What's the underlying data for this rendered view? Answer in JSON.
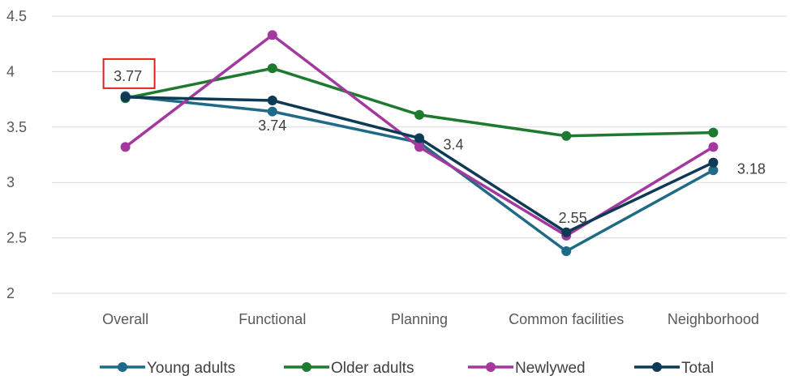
{
  "chart_data": {
    "type": "line",
    "categories": [
      "Overall",
      "Functional",
      "Planning",
      "Common facilities",
      "Neighborhood"
    ],
    "ylim": [
      2,
      4.5
    ],
    "yticks": [
      "2",
      "2.5",
      "3",
      "3.5",
      "4",
      "4.5"
    ],
    "grid": true,
    "legend_position": "bottom",
    "series": [
      {
        "name": "Young adults",
        "color": "#1f6a87",
        "values": [
          3.78,
          3.64,
          3.36,
          2.38,
          3.11
        ]
      },
      {
        "name": "Older adults",
        "color": "#1e7a2e",
        "values": [
          3.76,
          4.03,
          3.61,
          3.42,
          3.45
        ]
      },
      {
        "name": "Newlywed",
        "color": "#a3399e",
        "values": [
          3.32,
          4.33,
          3.32,
          2.52,
          3.32
        ]
      },
      {
        "name": "Total",
        "color": "#0e3a55",
        "values": [
          3.77,
          3.74,
          3.4,
          2.55,
          3.18
        ]
      }
    ],
    "data_labels": [
      {
        "series": "Total",
        "category": "Overall",
        "text": "3.77",
        "highlighted": true
      },
      {
        "series": "Total",
        "category": "Functional",
        "text": "3.74"
      },
      {
        "series": "Total",
        "category": "Planning",
        "text": "3.4"
      },
      {
        "series": "Total",
        "category": "Common facilities",
        "text": "2.55"
      },
      {
        "series": "Total",
        "category": "Neighborhood",
        "text": "3.18"
      }
    ],
    "highlight_color": "#e02020"
  }
}
